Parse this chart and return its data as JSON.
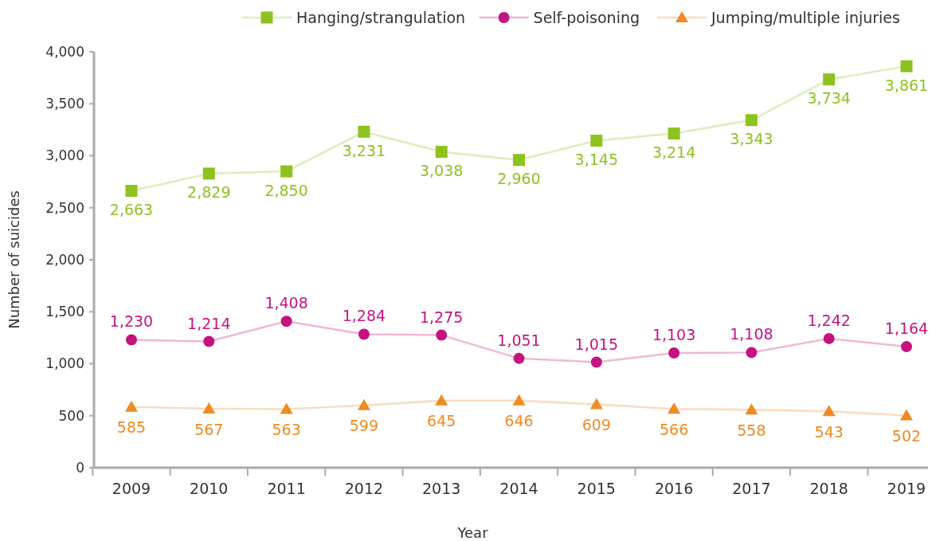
{
  "chart_data": {
    "type": "line",
    "xlabel": "Year",
    "ylabel": "Number of suicides",
    "categories": [
      "2009",
      "2010",
      "2011",
      "2012",
      "2013",
      "2014",
      "2015",
      "2016",
      "2017",
      "2018",
      "2019"
    ],
    "series": [
      {
        "name": "Hanging/strangulation",
        "color": "#8dc21f",
        "marker": "square",
        "values": [
          2663,
          2829,
          2850,
          3231,
          3038,
          2960,
          3145,
          3214,
          3343,
          3734,
          3861
        ],
        "value_labels": [
          "2,663",
          "2,829",
          "2,850",
          "3,231",
          "3,038",
          "2,960",
          "3,145",
          "3,214",
          "3,343",
          "3,734",
          "3,861"
        ]
      },
      {
        "name": "Self-poisoning",
        "color": "#c4137f",
        "marker": "circle",
        "values": [
          1230,
          1214,
          1408,
          1284,
          1275,
          1051,
          1015,
          1103,
          1108,
          1242,
          1164
        ],
        "value_labels": [
          "1,230",
          "1,214",
          "1,408",
          "1,284",
          "1,275",
          "1,051",
          "1,015",
          "1,103",
          "1,108",
          "1,242",
          "1,164"
        ]
      },
      {
        "name": "Jumping/multiple injuries",
        "color": "#f08a24",
        "marker": "triangle",
        "values": [
          585,
          567,
          563,
          599,
          645,
          646,
          609,
          566,
          558,
          543,
          502
        ],
        "value_labels": [
          "585",
          "567",
          "563",
          "599",
          "645",
          "646",
          "609",
          "566",
          "558",
          "543",
          "502"
        ]
      }
    ],
    "ylim": [
      0,
      4000
    ],
    "yticks": [
      0,
      500,
      {
        "value": 1000,
        "label": "1,000"
      },
      {
        "value": 1500,
        "label": "1,500"
      },
      {
        "value": 2000,
        "label": "2,000"
      },
      {
        "value": 2500,
        "label": "2,500"
      },
      {
        "value": 3000,
        "label": "3,000"
      },
      {
        "value": 3500,
        "label": "3,500"
      },
      {
        "value": 4000,
        "label": "4,000"
      }
    ],
    "grid": false,
    "legend": "top right",
    "line_style": "solid"
  }
}
